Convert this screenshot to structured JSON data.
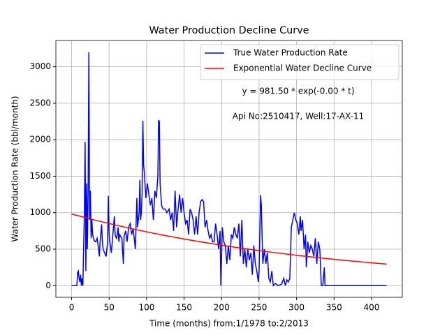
{
  "chart_data": {
    "type": "line",
    "title": "Water Production Decline Curve",
    "x_label": "Time (months) from:1/1978 to:2/2013",
    "y_label": "Water Production Rate (bbl/month)",
    "annotations": [
      "y = 981.50 * exp(-0.00 * t)",
      "Api No:2510417, Well:17-AX-11"
    ],
    "xlim": [
      -21,
      441
    ],
    "ylim": [
      -160,
      3360
    ],
    "xticks": [
      0,
      50,
      100,
      150,
      200,
      250,
      300,
      350,
      400
    ],
    "yticks": [
      0,
      500,
      1000,
      1500,
      2000,
      2500,
      3000
    ],
    "grid": true,
    "legend": "upper right",
    "series": [
      {
        "name": "True Water Production Rate",
        "color": "#0000ff",
        "x": [
          0,
          5,
          7,
          8,
          9,
          10,
          11,
          12,
          13,
          14,
          15,
          17,
          18,
          19,
          20,
          21,
          22,
          23,
          24,
          25,
          26,
          27,
          28,
          30,
          32,
          34,
          36,
          37,
          38,
          40,
          41,
          42,
          44,
          46,
          48,
          49,
          50,
          51,
          53,
          55,
          57,
          58,
          60,
          62,
          63,
          64,
          67,
          69,
          70,
          72,
          74,
          76,
          78,
          80,
          82,
          84,
          85,
          87,
          88,
          90,
          91,
          92,
          93,
          94,
          95,
          96,
          97,
          99,
          101,
          103,
          105,
          107,
          109,
          111,
          113,
          115,
          116,
          117,
          118,
          120,
          122,
          125,
          127,
          130,
          132,
          134,
          136,
          138,
          140,
          142,
          144,
          146,
          148,
          150,
          152,
          154,
          156,
          158,
          160,
          162,
          164,
          166,
          168,
          170,
          172,
          174,
          176,
          178,
          180,
          182,
          184,
          186,
          188,
          190,
          192,
          194,
          196,
          198,
          199,
          201,
          203,
          205,
          207,
          209,
          211,
          213,
          215,
          217,
          219,
          221,
          223,
          225,
          227,
          229,
          231,
          233,
          235,
          237,
          239,
          241,
          243,
          245,
          247,
          249,
          250,
          252,
          253,
          255,
          257,
          259,
          261,
          263,
          265,
          267,
          269,
          272,
          275,
          280,
          283,
          285,
          287,
          289,
          291,
          293,
          295,
          297,
          299,
          301,
          303,
          305,
          306,
          308,
          310,
          312,
          313,
          315,
          317,
          319,
          321,
          323,
          325,
          327,
          329,
          331,
          333,
          335,
          337,
          338,
          350,
          400,
          420
        ],
        "values": [
          0,
          0,
          0,
          180,
          200,
          100,
          50,
          150,
          0,
          100,
          0,
          1000,
          1970,
          200,
          1400,
          500,
          1300,
          3200,
          900,
          1300,
          650,
          900,
          700,
          620,
          600,
          650,
          500,
          400,
          600,
          840,
          600,
          500,
          450,
          400,
          600,
          1230,
          700,
          600,
          450,
          700,
          950,
          700,
          640,
          800,
          600,
          700,
          650,
          300,
          680,
          750,
          600,
          800,
          850,
          700,
          780,
          600,
          500,
          1200,
          800,
          1000,
          1450,
          900,
          1000,
          1250,
          2260,
          1650,
          1550,
          1200,
          1400,
          1250,
          1100,
          1200,
          900,
          1300,
          1200,
          1500,
          2270,
          2250,
          1400,
          1100,
          1050,
          1050,
          1000,
          1050,
          900,
          1000,
          750,
          1300,
          800,
          1050,
          1250,
          1000,
          1200,
          1000,
          850,
          900,
          700,
          1050,
          1000,
          900,
          700,
          950,
          700,
          1000,
          1150,
          1180,
          1150,
          800,
          900,
          750,
          650,
          700,
          600,
          600,
          850,
          700,
          500,
          750,
          0,
          800,
          600,
          550,
          300,
          550,
          350,
          700,
          650,
          800,
          700,
          650,
          850,
          400,
          900,
          300,
          500,
          250,
          500,
          350,
          450,
          150,
          550,
          300,
          200,
          50,
          200,
          1240,
          1100,
          300,
          500,
          300,
          450,
          100,
          50,
          200,
          0,
          30,
          0,
          20,
          100,
          0,
          80,
          50,
          100,
          800,
          900,
          1000,
          900,
          850,
          700,
          950,
          750,
          900,
          500,
          700,
          250,
          600,
          450,
          550,
          500,
          400,
          650,
          300,
          600,
          500,
          0,
          0,
          250,
          0,
          0,
          0,
          0
        ]
      },
      {
        "name": "Exponential Water Decline Curve",
        "color": "#ff0000",
        "x": [
          0,
          30,
          60,
          90,
          120,
          150,
          180,
          210,
          240,
          270,
          300,
          330,
          360,
          390,
          420
        ],
        "values": [
          981.5,
          901,
          827,
          759,
          696,
          639,
          587,
          538,
          494,
          454,
          416,
          382,
          351,
          322,
          295
        ]
      }
    ]
  }
}
